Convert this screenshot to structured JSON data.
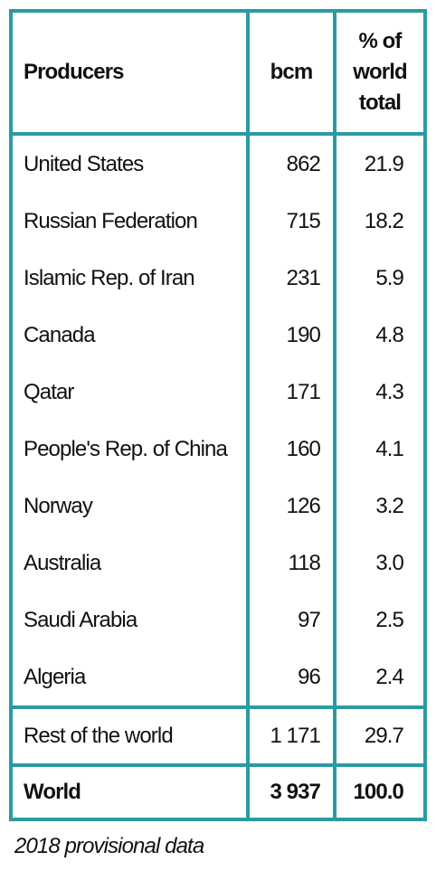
{
  "table": {
    "header": [
      "Producers",
      "bcm",
      "% of world total"
    ],
    "rows": [
      [
        "United States",
        "862",
        "21.9"
      ],
      [
        "Russian Federation",
        "715",
        "18.2"
      ],
      [
        "Islamic Rep. of Iran",
        "231",
        "5.9"
      ],
      [
        "Canada",
        "190",
        "4.8"
      ],
      [
        "Qatar",
        "171",
        "4.3"
      ],
      [
        "People's Rep. of China",
        "160",
        "4.1"
      ],
      [
        "Norway",
        "126",
        "3.2"
      ],
      [
        "Australia",
        "118",
        "3.0"
      ],
      [
        "Saudi Arabia",
        "97",
        "2.5"
      ],
      [
        "Algeria",
        "96",
        "2.4"
      ]
    ],
    "rest": [
      "Rest of the world",
      "1 171",
      "29.7"
    ],
    "total": [
      "World",
      "3 937",
      "100.0"
    ]
  },
  "footnote": "2018 provisional data"
}
